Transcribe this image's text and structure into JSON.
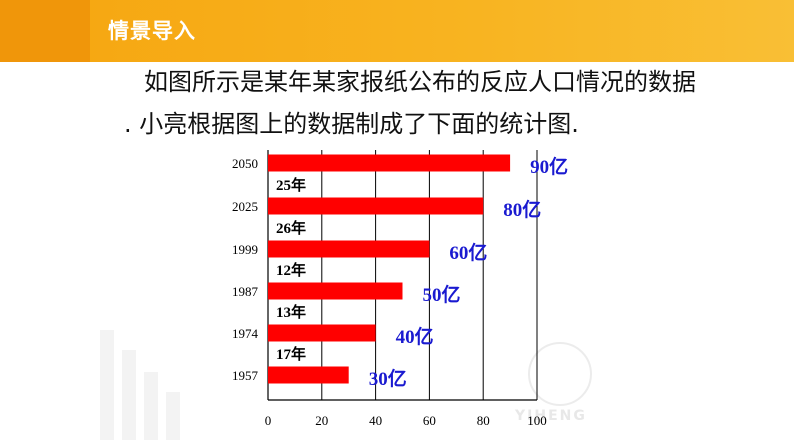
{
  "header": {
    "title": "情景导入"
  },
  "paragraph": {
    "line1": "如图所示是某年某家报纸公布的反应人口情况的数据",
    "line2": ". 小亮根据图上的数据制成了下面的统计图."
  },
  "watermark": {
    "text": "YIHENG"
  },
  "colors": {
    "header": "#f6a50f",
    "bar": "#ff0000",
    "value_label": "#1a1ad0"
  },
  "chart_data": {
    "type": "bar",
    "orientation": "horizontal",
    "categories": [
      "2050",
      "2025",
      "1999",
      "1987",
      "1974",
      "1957"
    ],
    "values": [
      90,
      80,
      60,
      50,
      40,
      30
    ],
    "value_labels": [
      "90亿",
      "80亿",
      "60亿",
      "50亿",
      "40亿",
      "30亿"
    ],
    "gap_labels": [
      "25年",
      "26年",
      "12年",
      "13年",
      "17年"
    ],
    "x_ticks": [
      "0",
      "20",
      "40",
      "60",
      "80",
      "100"
    ],
    "xlim": [
      0,
      100
    ],
    "grid": "vertical"
  }
}
